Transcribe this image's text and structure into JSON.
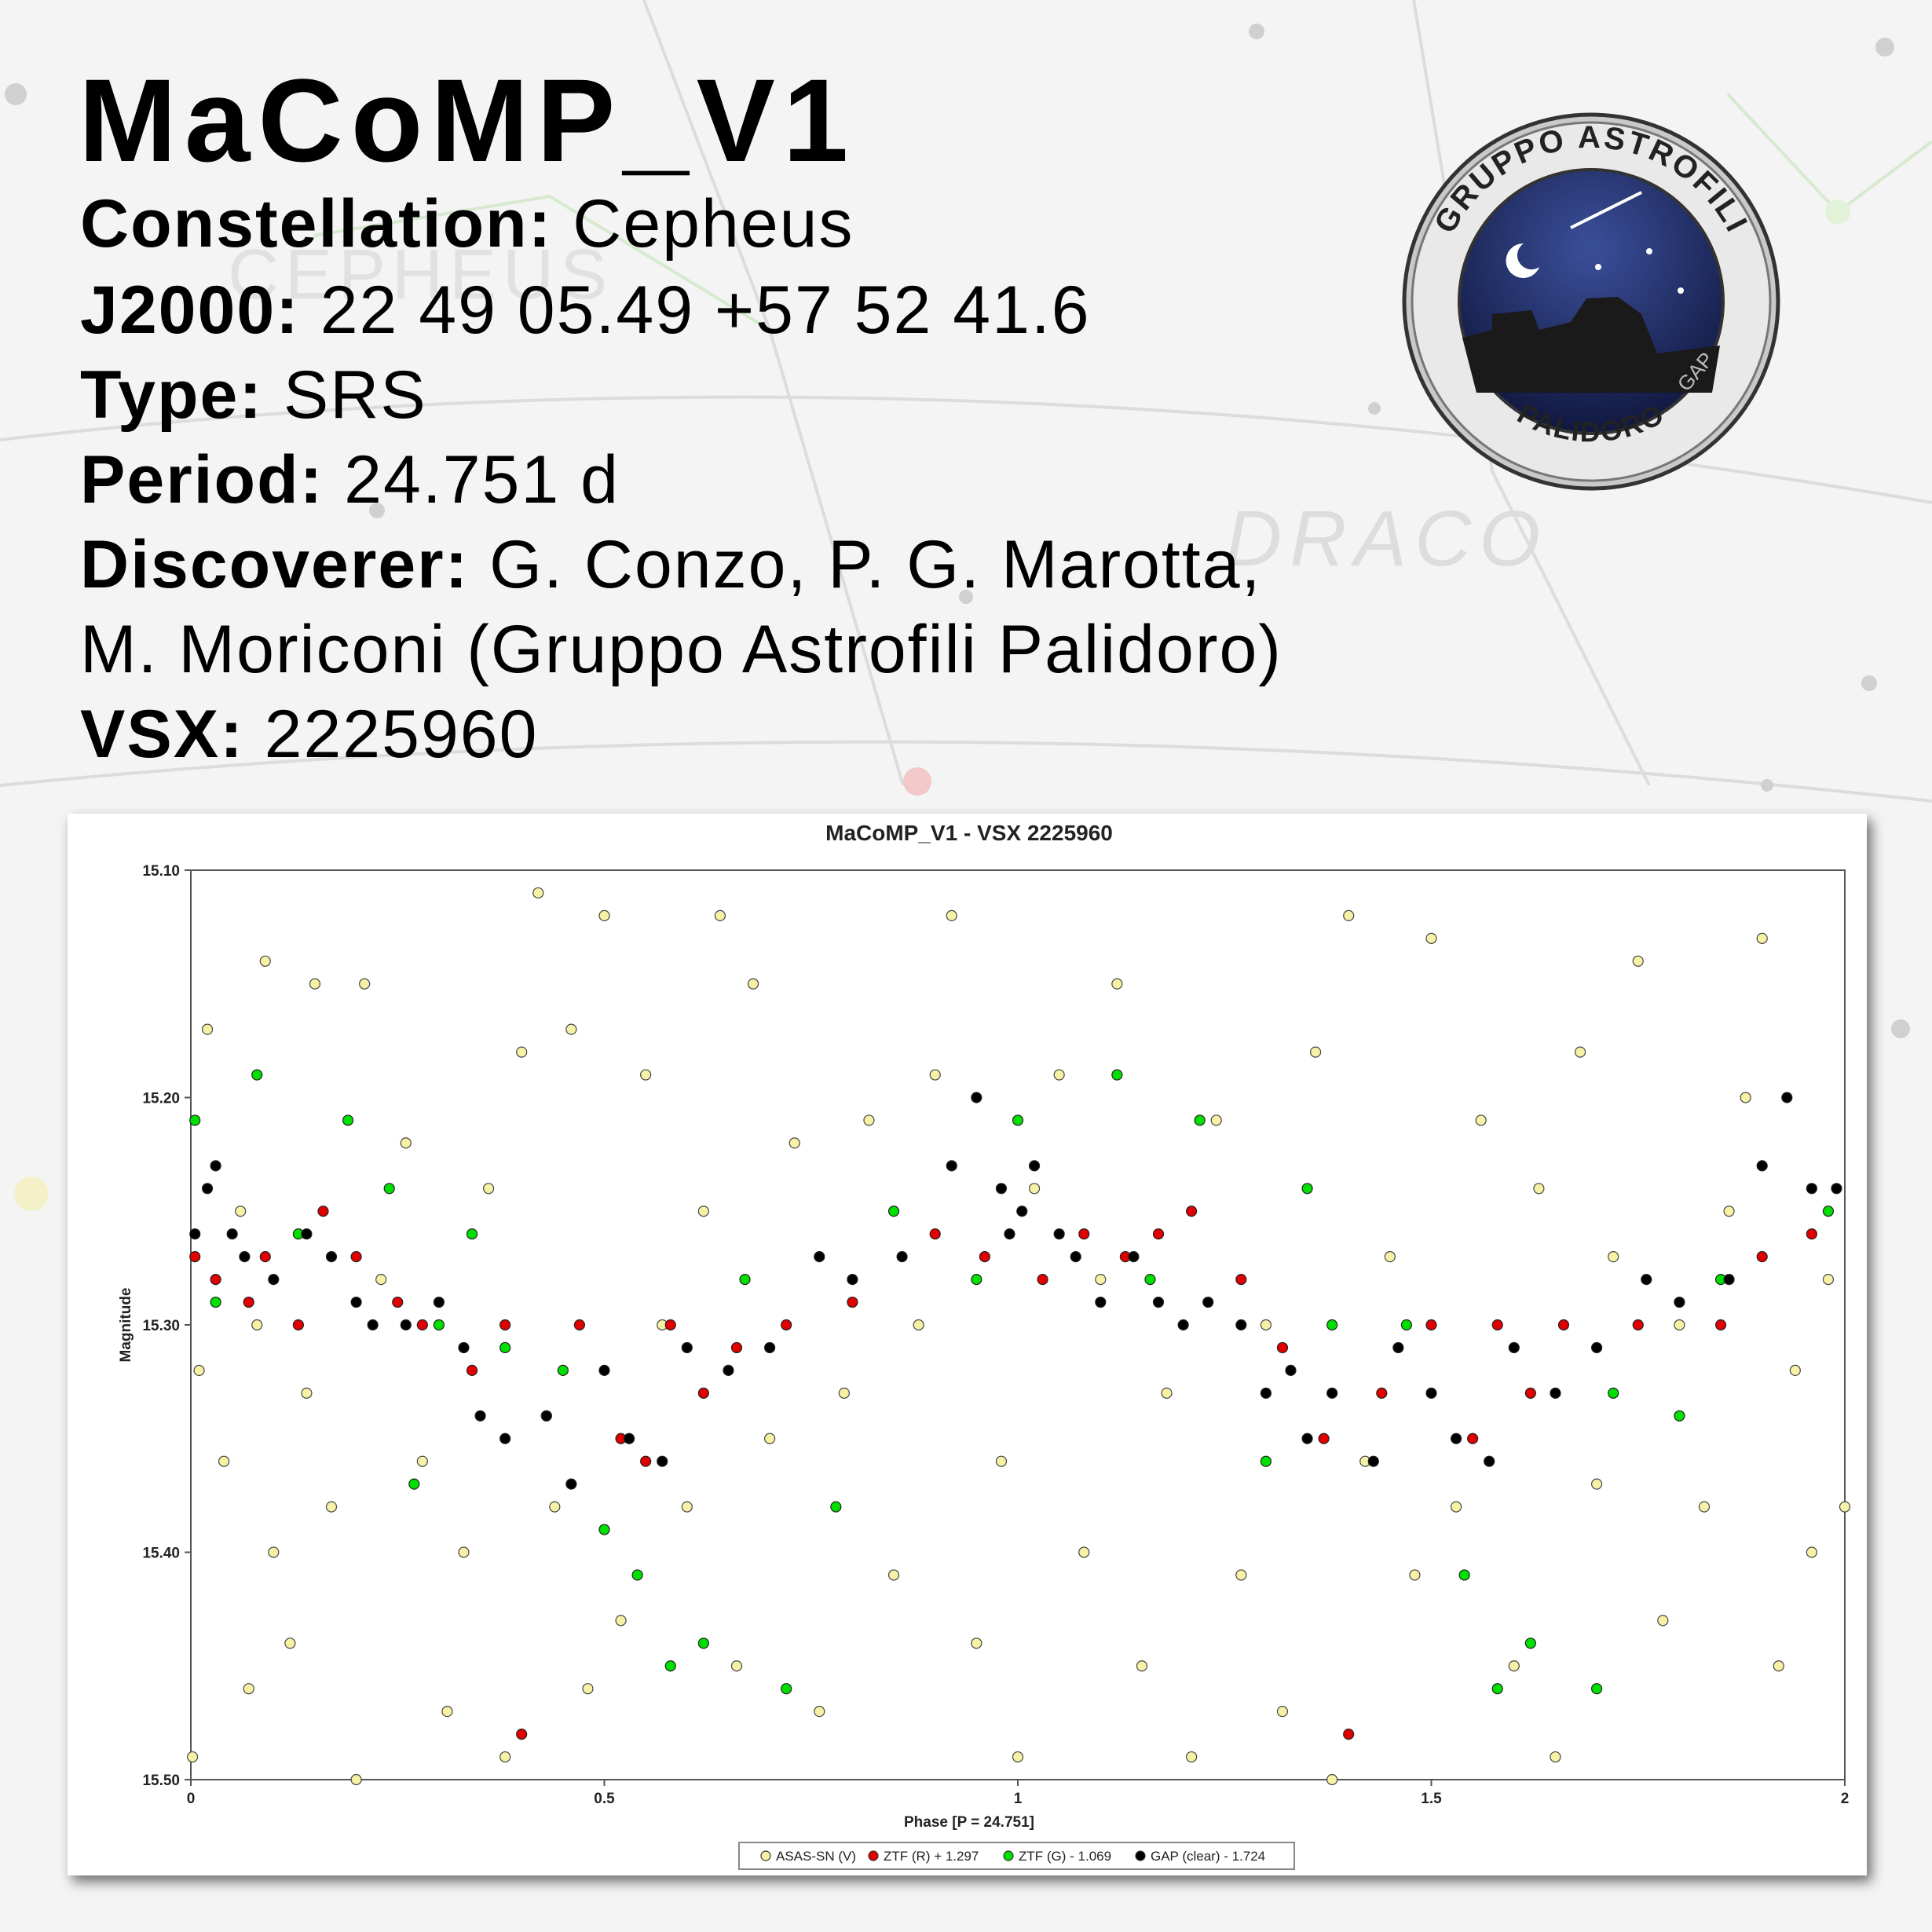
{
  "header": {
    "title": "MaCoMP_V1",
    "fields": [
      {
        "label": "Constellation:",
        "value": "Cepheus"
      },
      {
        "label": "J2000:",
        "value": "22 49 05.49 +57 52 41.6"
      },
      {
        "label": "Type:",
        "value": "SRS"
      },
      {
        "label": "Period:",
        "value": "24.751 d"
      },
      {
        "label": "Discoverer:",
        "value": "G. Conzo, P. G. Marotta,"
      },
      {
        "label": null,
        "value": "M. Moriconi (Gruppo Astrofili Palidoro)"
      },
      {
        "label": "VSX:",
        "value": "2225960"
      }
    ]
  },
  "logo": {
    "top": "GRUPPO ASTROFILI",
    "bottom": "PALIDORO",
    "side": "GAP"
  },
  "background_labels": [
    "CEPHEUS",
    "DRACO"
  ],
  "chart_data": {
    "type": "scatter",
    "title": "MaCoMP_V1 - VSX 2225960",
    "x_label": "Phase [P = 24.751]",
    "y_label": "Magnitude",
    "xlim": [
      0,
      2
    ],
    "xticks": [
      0,
      0.5,
      1,
      1.5,
      2
    ],
    "ylim": [
      15.1,
      15.5
    ],
    "y_reversed": true,
    "yticks": [
      {
        "value": 15.1,
        "label": "15.10"
      },
      {
        "value": 15.2,
        "label": "15.20"
      },
      {
        "value": 15.3,
        "label": "15.30"
      },
      {
        "value": 15.4,
        "label": "15.40"
      },
      {
        "value": 15.5,
        "label": "15.50"
      }
    ],
    "grid": false,
    "legend": "bottom",
    "series": [
      {
        "name": "ASAS-SN (V)",
        "color": "#f7f1a6",
        "x": [
          0.002,
          0.01,
          0.02,
          0.04,
          0.06,
          0.07,
          0.08,
          0.09,
          0.1,
          0.12,
          0.14,
          0.15,
          0.17,
          0.2,
          0.21,
          0.23,
          0.26,
          0.28,
          0.31,
          0.33,
          0.36,
          0.38,
          0.4,
          0.42,
          0.44,
          0.46,
          0.48,
          0.5,
          0.52,
          0.55,
          0.57,
          0.6,
          0.62,
          0.64,
          0.66,
          0.68,
          0.7,
          0.73,
          0.76,
          0.79,
          0.82,
          0.85,
          0.88,
          0.9,
          0.92,
          0.95,
          0.98,
          1.0,
          1.02,
          1.05,
          1.08,
          1.1,
          1.12,
          1.15,
          1.18,
          1.21,
          1.24,
          1.27,
          1.3,
          1.32,
          1.36,
          1.38,
          1.4,
          1.42,
          1.45,
          1.48,
          1.5,
          1.53,
          1.56,
          1.6,
          1.63,
          1.65,
          1.68,
          1.7,
          1.72,
          1.75,
          1.78,
          1.8,
          1.83,
          1.86,
          1.88,
          1.9,
          1.92,
          1.94,
          1.96,
          1.98,
          2.0
        ],
        "values": [
          15.49,
          15.32,
          15.17,
          15.36,
          15.25,
          15.46,
          15.3,
          15.14,
          15.4,
          15.44,
          15.33,
          15.15,
          15.38,
          15.5,
          15.15,
          15.28,
          15.22,
          15.36,
          15.47,
          15.4,
          15.24,
          15.49,
          15.18,
          15.11,
          15.38,
          15.17,
          15.46,
          15.12,
          15.43,
          15.19,
          15.3,
          15.38,
          15.25,
          15.12,
          15.45,
          15.15,
          15.35,
          15.22,
          15.47,
          15.33,
          15.21,
          15.41,
          15.3,
          15.19,
          15.12,
          15.44,
          15.36,
          15.49,
          15.24,
          15.19,
          15.4,
          15.28,
          15.15,
          15.45,
          15.33,
          15.49,
          15.21,
          15.41,
          15.3,
          15.47,
          15.18,
          15.5,
          15.12,
          15.36,
          15.27,
          15.41,
          15.13,
          15.38,
          15.21,
          15.45,
          15.24,
          15.49,
          15.18,
          15.37,
          15.27,
          15.14,
          15.43,
          15.3,
          15.38,
          15.25,
          15.2,
          15.13,
          15.45,
          15.32,
          15.4,
          15.28,
          15.38
        ]
      },
      {
        "name": "ZTF (R) + 1.297",
        "color": "#e00000",
        "x": [
          0.005,
          0.03,
          0.07,
          0.09,
          0.13,
          0.16,
          0.2,
          0.25,
          0.28,
          0.34,
          0.38,
          0.4,
          0.43,
          0.47,
          0.52,
          0.55,
          0.58,
          0.62,
          0.66,
          0.72,
          0.8,
          0.9,
          0.96,
          1.03,
          1.08,
          1.13,
          1.17,
          1.21,
          1.27,
          1.32,
          1.37,
          1.4,
          1.44,
          1.5,
          1.55,
          1.58,
          1.62,
          1.66,
          1.75,
          1.85,
          1.9,
          1.96
        ],
        "values": [
          15.27,
          15.28,
          15.29,
          15.27,
          15.3,
          15.25,
          15.27,
          15.29,
          15.3,
          15.32,
          15.3,
          15.48,
          15.34,
          15.3,
          15.35,
          15.36,
          15.3,
          15.33,
          15.31,
          15.3,
          15.29,
          15.26,
          15.27,
          15.28,
          15.26,
          15.27,
          15.26,
          15.25,
          15.28,
          15.31,
          15.35,
          15.48,
          15.33,
          15.3,
          15.35,
          15.3,
          15.33,
          15.3,
          15.3,
          15.3,
          15.27,
          15.26
        ]
      },
      {
        "name": "ZTF (G) - 1.069",
        "color": "#00e000",
        "x": [
          0.005,
          0.03,
          0.08,
          0.13,
          0.19,
          0.24,
          0.27,
          0.3,
          0.34,
          0.38,
          0.45,
          0.5,
          0.54,
          0.58,
          0.62,
          0.67,
          0.72,
          0.78,
          0.85,
          0.95,
          1.0,
          1.12,
          1.16,
          1.22,
          1.3,
          1.35,
          1.38,
          1.47,
          1.54,
          1.58,
          1.62,
          1.7,
          1.72,
          1.8,
          1.85,
          1.98
        ],
        "values": [
          15.21,
          15.29,
          15.19,
          15.26,
          15.21,
          15.24,
          15.37,
          15.3,
          15.26,
          15.31,
          15.32,
          15.39,
          15.41,
          15.45,
          15.44,
          15.28,
          15.46,
          15.38,
          15.25,
          15.28,
          15.21,
          15.19,
          15.28,
          15.21,
          15.36,
          15.24,
          15.3,
          15.3,
          15.41,
          15.46,
          15.44,
          15.46,
          15.33,
          15.34,
          15.28,
          15.25
        ]
      },
      {
        "name": "GAP (clear) - 1.724",
        "color": "#000000",
        "x": [
          0.005,
          0.02,
          0.03,
          0.05,
          0.065,
          0.1,
          0.14,
          0.17,
          0.2,
          0.22,
          0.26,
          0.3,
          0.33,
          0.35,
          0.38,
          0.43,
          0.46,
          0.5,
          0.53,
          0.57,
          0.6,
          0.65,
          0.7,
          0.76,
          0.8,
          0.86,
          0.92,
          0.95,
          0.98,
          0.99,
          1.005,
          1.02,
          1.05,
          1.07,
          1.1,
          1.14,
          1.17,
          1.2,
          1.23,
          1.27,
          1.3,
          1.33,
          1.35,
          1.38,
          1.43,
          1.46,
          1.5,
          1.53,
          1.57,
          1.6,
          1.65,
          1.7,
          1.76,
          1.8,
          1.86,
          1.9,
          1.93,
          1.96,
          1.99
        ],
        "values": [
          15.26,
          15.24,
          15.23,
          15.26,
          15.27,
          15.28,
          15.26,
          15.27,
          15.29,
          15.3,
          15.3,
          15.29,
          15.31,
          15.34,
          15.35,
          15.34,
          15.37,
          15.32,
          15.35,
          15.36,
          15.31,
          15.32,
          15.31,
          15.27,
          15.28,
          15.27,
          15.23,
          15.2,
          15.24,
          15.26,
          15.25,
          15.23,
          15.26,
          15.27,
          15.29,
          15.27,
          15.29,
          15.3,
          15.29,
          15.3,
          15.33,
          15.32,
          15.35,
          15.33,
          15.36,
          15.31,
          15.33,
          15.35,
          15.36,
          15.31,
          15.33,
          15.31,
          15.28,
          15.29,
          15.28,
          15.23,
          15.2,
          15.24,
          15.24
        ]
      }
    ]
  }
}
